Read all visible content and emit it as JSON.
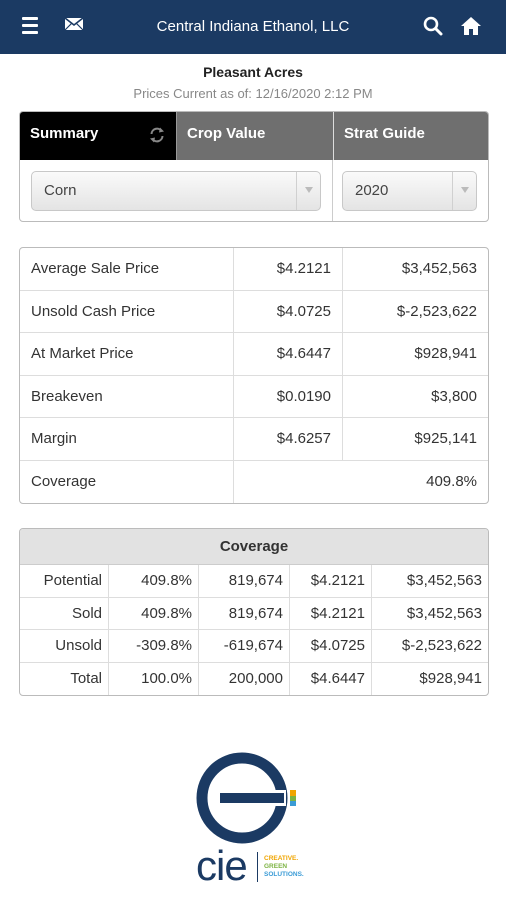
{
  "header": {
    "title": "Central Indiana Ethanol, LLC",
    "icons": [
      "menu-icon",
      "mail-icon",
      "search-icon",
      "home-icon"
    ]
  },
  "farm": {
    "name": "Pleasant Acres",
    "timestamp": "Prices Current as of: 12/16/2020 2:12 PM"
  },
  "tabs": [
    {
      "label": "Summary",
      "active": true
    },
    {
      "label": "Crop Value",
      "active": false
    },
    {
      "label": "Strat Guide",
      "active": false
    }
  ],
  "filters": {
    "crop": "Corn",
    "year": "2020"
  },
  "summary": {
    "rows": [
      {
        "label": "Average Sale Price",
        "price": "$4.2121",
        "value": "$3,452,563"
      },
      {
        "label": "Unsold Cash Price",
        "price": "$4.0725",
        "value": "$-2,523,622"
      },
      {
        "label": "At Market Price",
        "price": "$4.6447",
        "value": "$928,941"
      },
      {
        "label": "Breakeven",
        "price": "$0.0190",
        "value": "$3,800"
      },
      {
        "label": "Margin",
        "price": "$4.6257",
        "value": "$925,141"
      }
    ],
    "coverage_label": "Coverage",
    "coverage_value": "409.8%"
  },
  "coverage_table": {
    "title": "Coverage",
    "rows": [
      {
        "label": "Potential",
        "pct": "409.8%",
        "qty": "819,674",
        "price": "$4.2121",
        "value": "$3,452,563"
      },
      {
        "label": "Sold",
        "pct": "409.8%",
        "qty": "819,674",
        "price": "$4.2121",
        "value": "$3,452,563"
      },
      {
        "label": "Unsold",
        "pct": "-309.8%",
        "qty": "-619,674",
        "price": "$4.0725",
        "value": "$-2,523,622"
      },
      {
        "label": "Total",
        "pct": "100.0%",
        "qty": "200,000",
        "price": "$4.6447",
        "value": "$928,941"
      }
    ]
  },
  "logo": {
    "text": "cie",
    "tagline": [
      "CREATIVE.",
      "GREEN",
      "SOLUTIONS."
    ],
    "colors": {
      "navy": "#1b3a63",
      "orange": "#f0a500",
      "green": "#7cb342",
      "blue": "#3a9bd6"
    }
  }
}
